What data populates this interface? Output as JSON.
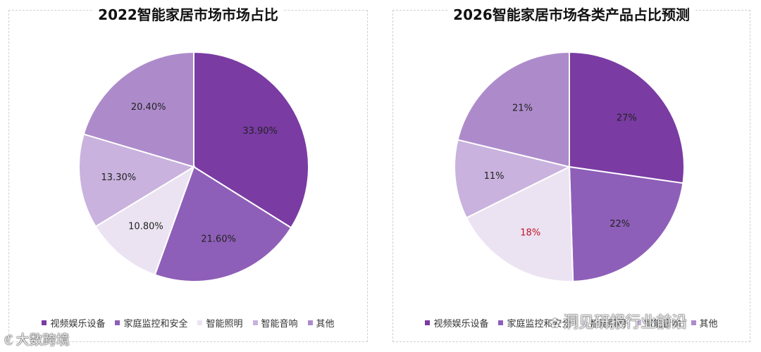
{
  "chart_data": [
    {
      "type": "pie",
      "title": "2022智能家居市场市场占比",
      "categories": [
        "视频娱乐设备",
        "家庭监控和安全",
        "智能照明",
        "智能音响",
        "其他"
      ],
      "values": [
        33.9,
        21.6,
        10.8,
        13.3,
        20.4
      ],
      "labels": [
        "33.90%",
        "21.60%",
        "10.80%",
        "13.30%",
        "20.40%"
      ],
      "colors": [
        "#7a3ba3",
        "#8e5fb8",
        "#ebe3f2",
        "#c9b2dd",
        "#ad8bcb"
      ],
      "label_colors": [
        "#222222",
        "#222222",
        "#222222",
        "#222222",
        "#222222"
      ],
      "legend_position": "bottom"
    },
    {
      "type": "pie",
      "title": "2026智能家居市场各类产品占比预测",
      "categories": [
        "视频娱乐设备",
        "家庭监控和安全",
        "智能照明",
        "智能音响",
        "其他"
      ],
      "values": [
        27,
        22,
        18,
        11,
        21
      ],
      "labels": [
        "27%",
        "22%",
        "18%",
        "11%",
        "21%"
      ],
      "colors": [
        "#7a3ba3",
        "#8e5fb8",
        "#ebe3f2",
        "#c9b2dd",
        "#ad8bcb"
      ],
      "label_colors": [
        "#222222",
        "#222222",
        "#c0142a",
        "#222222",
        "#222222"
      ],
      "legend_position": "bottom"
    }
  ],
  "watermarks": {
    "left": "大数跨境",
    "right": "洞见研报行业前沿"
  }
}
